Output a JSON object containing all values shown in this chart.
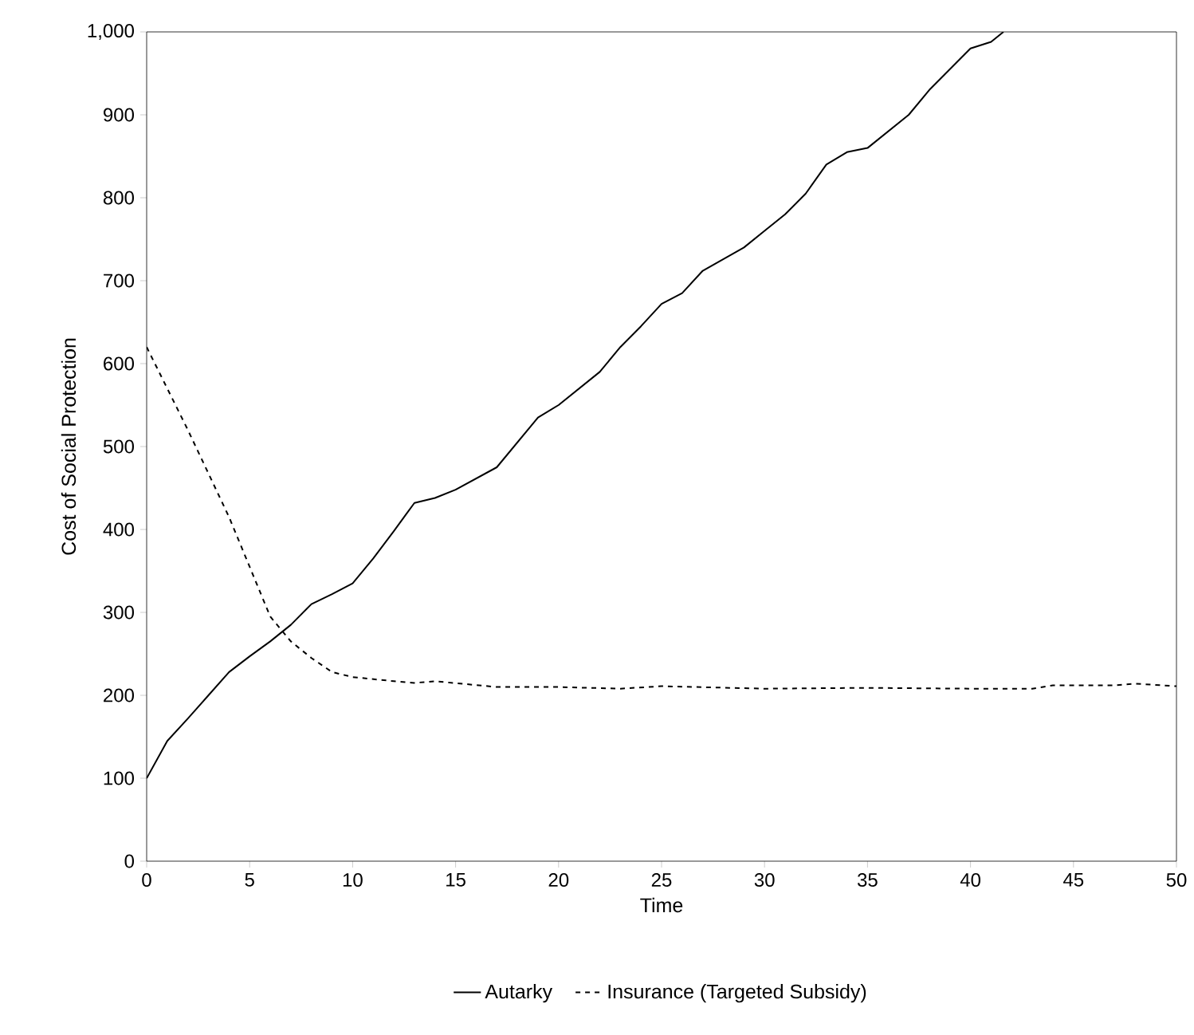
{
  "chart_data": {
    "type": "line",
    "xlabel": "Time",
    "ylabel": "Cost of Social Protection",
    "series": [
      {
        "name": "Autarky",
        "color": "#000000",
        "line_style": "solid",
        "x": [
          0,
          1,
          2,
          3,
          4,
          5,
          6,
          7,
          8,
          9,
          10,
          11,
          12,
          13,
          14,
          15,
          17,
          19,
          20,
          22,
          23,
          24,
          25,
          26,
          27,
          29,
          30,
          31,
          32,
          33,
          34,
          35,
          37,
          38,
          40,
          41,
          41.6
        ],
        "values": [
          100,
          145,
          172,
          200,
          228,
          247,
          265,
          285,
          310,
          322,
          335,
          365,
          398,
          432,
          438,
          448,
          475,
          535,
          550,
          590,
          620,
          645,
          672,
          685,
          712,
          740,
          760,
          780,
          805,
          840,
          855,
          860,
          900,
          930,
          980,
          988,
          1000
        ]
      },
      {
        "name": "Insurance (Targeted Subsidy)",
        "color": "#000000",
        "line_style": "dashed",
        "x": [
          0,
          2,
          4,
          6,
          7,
          8,
          9,
          10,
          12,
          13,
          14,
          17,
          20,
          23,
          25,
          30,
          35,
          40,
          43,
          44,
          47,
          48,
          50
        ],
        "values": [
          620,
          520,
          415,
          295,
          265,
          245,
          228,
          222,
          217,
          215,
          217,
          210,
          210,
          208,
          211,
          208,
          209,
          208,
          208,
          212,
          212,
          214,
          211
        ]
      }
    ],
    "xlim": [
      0,
      50
    ],
    "xticks": [
      0,
      5,
      10,
      15,
      20,
      25,
      30,
      35,
      40,
      45,
      50
    ],
    "ylim": [
      0,
      1000
    ],
    "yticks": [
      0,
      100,
      200,
      300,
      400,
      500,
      600,
      700,
      800,
      900,
      {
        "value": 1000,
        "label": "1,000"
      }
    ],
    "grid": false,
    "legend": "bottom",
    "marker": "none"
  }
}
